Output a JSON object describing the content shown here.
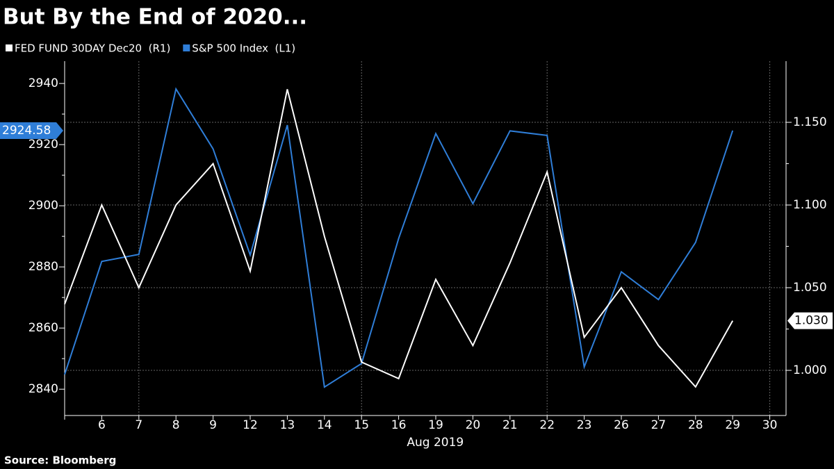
{
  "chart_data": {
    "type": "line",
    "title": "But By the End of 2020...",
    "source": "Source: Bloomberg",
    "xlabel": "Aug 2019",
    "categories": [
      null,
      "6",
      "7",
      "8",
      "9",
      "12",
      "13",
      "14",
      "15",
      "16",
      "19",
      "20",
      "21",
      "22",
      "23",
      "26",
      "27",
      "28",
      "29",
      "30"
    ],
    "series": [
      {
        "name": "FED FUND 30DAY Dec20  (R1)",
        "color": "#ffffff",
        "axis": "y2",
        "values": [
          1.04,
          1.1,
          1.05,
          1.1,
          1.125,
          1.06,
          1.17,
          1.081,
          1.005,
          0.995,
          1.055,
          1.015,
          1.065,
          1.12,
          1.02,
          1.05,
          1.015,
          0.99,
          1.03,
          null
        ],
        "value_labels": [
          null,
          null,
          null,
          null,
          null,
          null,
          null,
          null,
          null,
          null,
          null,
          null,
          null,
          null,
          null,
          null,
          null,
          null,
          "1.030",
          null
        ]
      },
      {
        "name": "S&P 500 Index  (L1)",
        "color": "#2f7ed8",
        "axis": "y",
        "values": [
          2844.8,
          2881.8,
          2884.1,
          2938.2,
          2918.6,
          2883.9,
          2926.4,
          2840.7,
          2848.4,
          2889.3,
          2923.6,
          2900.7,
          2924.5,
          2923.0,
          2847.3,
          2878.4,
          2869.3,
          2888.0,
          2924.58,
          null
        ]
      }
    ],
    "ylim": [
      2831.4,
      2947.3
    ],
    "yticks": [
      2840,
      2860,
      2880,
      2900,
      2920,
      2940
    ],
    "y2lim": [
      0.9727,
      1.187
    ],
    "y2ticks": [
      {
        "value": 1.0,
        "label": "1.000"
      },
      {
        "value": 1.05,
        "label": "1.050"
      },
      {
        "value": 1.1,
        "label": "1.100"
      },
      {
        "value": 1.15,
        "label": "1.150"
      }
    ],
    "grid": true,
    "legend": "top-left"
  }
}
